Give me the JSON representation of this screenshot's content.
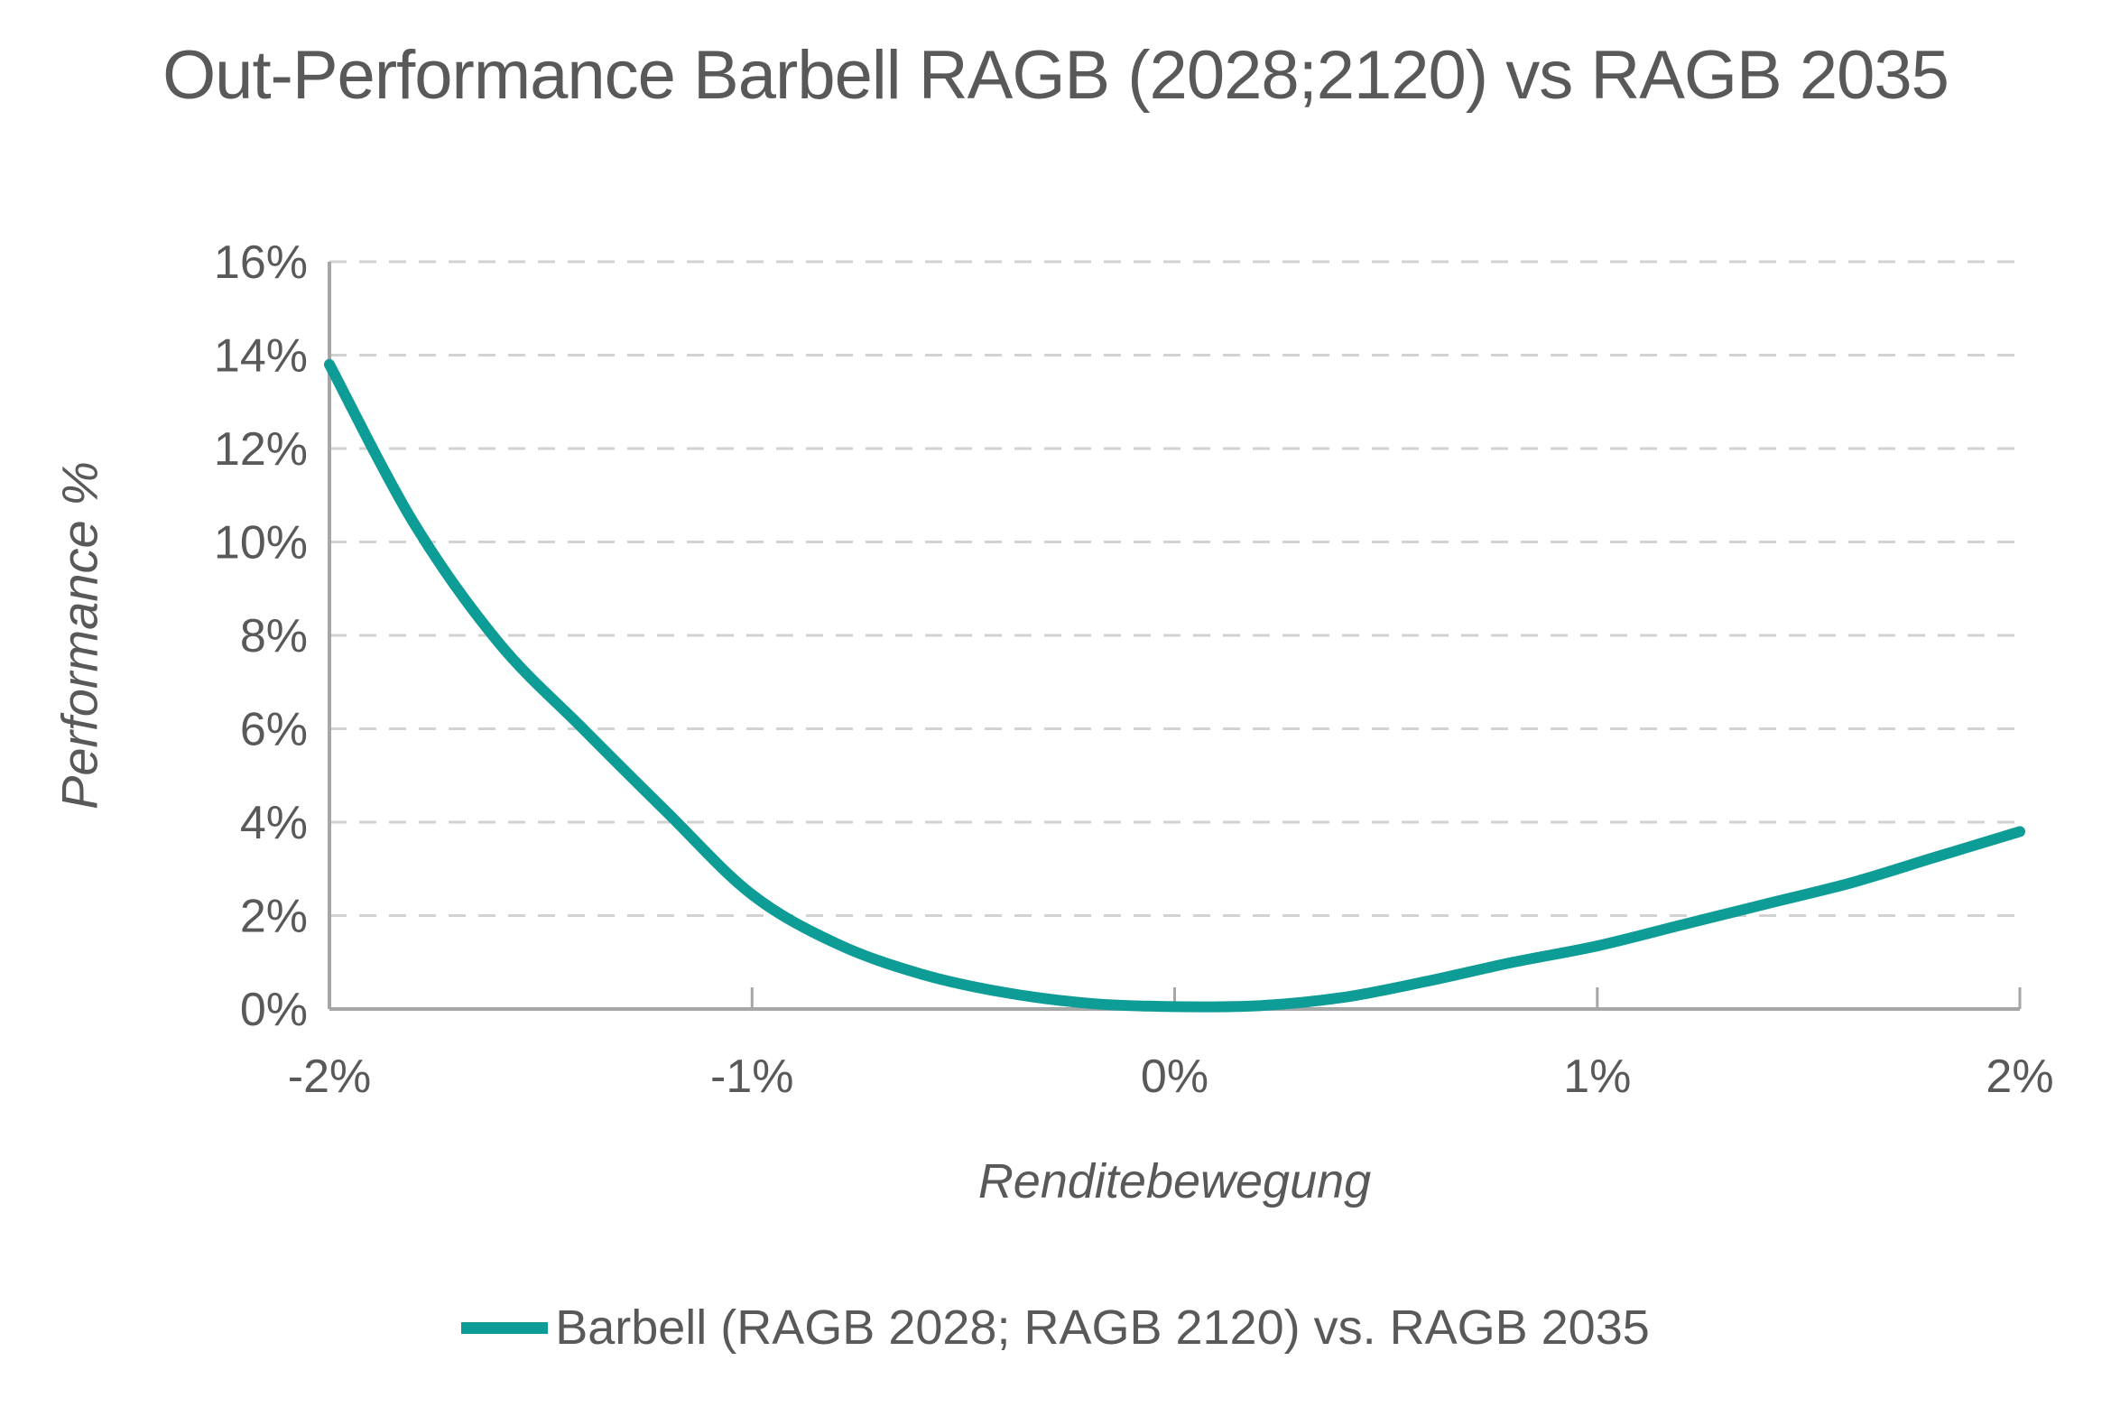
{
  "title": "Out-Performance Barbell RAGB (2028;2120) vs RAGB 2035",
  "colors": {
    "text": "#595959",
    "gridline": "#D2D2D2",
    "axis_line": "#A6A6A6",
    "series_teal": "#0E9C96",
    "background": "#FFFFFF"
  },
  "chart_data": {
    "type": "line",
    "title": "Out-Performance Barbell RAGB (2028;2120) vs RAGB 2035",
    "xlabel": "Renditebewegung",
    "ylabel": "Performance %",
    "xlim": [
      -2,
      2
    ],
    "ylim": [
      0,
      16
    ],
    "x_ticks": [
      -2,
      -1,
      0,
      1,
      2
    ],
    "x_tick_labels": [
      "-2%",
      "-1%",
      "0%",
      "1%",
      "2%"
    ],
    "y_ticks": [
      0,
      2,
      4,
      6,
      8,
      10,
      12,
      14,
      16
    ],
    "y_tick_labels": [
      "0%",
      "2%",
      "4%",
      "6%",
      "8%",
      "10%",
      "12%",
      "14%",
      "16%"
    ],
    "grid": "horizontal-dashed",
    "legend_position": "bottom-center",
    "series": [
      {
        "name": "Barbell (RAGB 2028; RAGB 2120) vs. RAGB 2035",
        "color": "#0E9C96",
        "x": [
          -2.0,
          -1.8,
          -1.6,
          -1.4,
          -1.2,
          -1.0,
          -0.8,
          -0.6,
          -0.4,
          -0.2,
          0.0,
          0.2,
          0.4,
          0.6,
          0.8,
          1.0,
          1.2,
          1.4,
          1.6,
          1.8,
          2.0
        ],
        "y": [
          13.8,
          10.4,
          7.85,
          6.0,
          4.2,
          2.45,
          1.4,
          0.75,
          0.35,
          0.12,
          0.05,
          0.07,
          0.25,
          0.6,
          1.0,
          1.35,
          1.8,
          2.25,
          2.7,
          3.25,
          3.8
        ]
      }
    ]
  }
}
